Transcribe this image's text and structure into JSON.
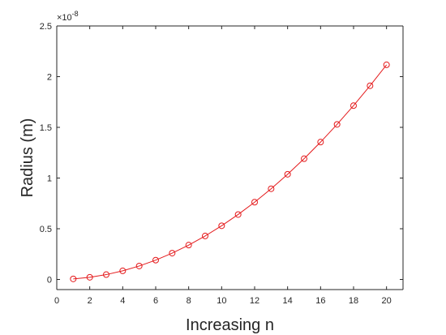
{
  "chart_data": {
    "type": "line",
    "title": "",
    "xlabel": "Increasing n",
    "ylabel": "Radius (m)",
    "y_exponent_label": "×10",
    "y_exponent_power": "-8",
    "xlim": [
      0,
      21
    ],
    "ylim": [
      -0.1,
      2.5
    ],
    "xticks": [
      0,
      2,
      4,
      6,
      8,
      10,
      12,
      14,
      16,
      18,
      20
    ],
    "yticks": [
      0,
      0.5,
      1,
      1.5,
      2,
      2.5
    ],
    "grid": false,
    "legend": null,
    "series": [
      {
        "color": "#e41a1c",
        "marker": "circle",
        "x": [
          1,
          2,
          3,
          4,
          5,
          6,
          7,
          8,
          9,
          10,
          11,
          12,
          13,
          14,
          15,
          16,
          17,
          18,
          19,
          20
        ],
        "y": [
          0.0053,
          0.0212,
          0.0476,
          0.0847,
          0.1323,
          0.1905,
          0.2593,
          0.3387,
          0.4286,
          0.5292,
          0.6403,
          0.762,
          0.8943,
          1.0372,
          1.1906,
          1.3547,
          1.5293,
          1.7145,
          1.9103,
          2.1167
        ]
      }
    ]
  }
}
